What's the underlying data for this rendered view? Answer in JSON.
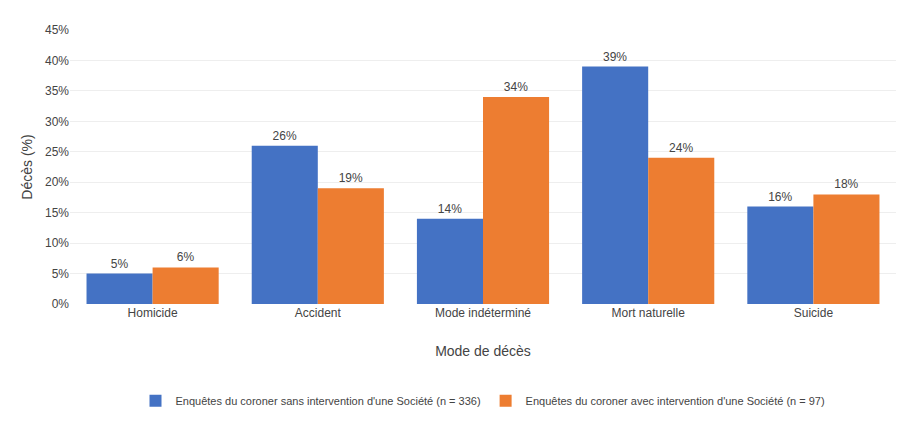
{
  "chart_data": {
    "type": "bar",
    "categories": [
      "Homicide",
      "Accident",
      "Mode indéterminé",
      "Mort naturelle",
      "Suicide"
    ],
    "series": [
      {
        "name": "Enquêtes du coroner sans intervention d'une Société (n = 336)",
        "color": "#4472C4",
        "values": [
          5,
          26,
          14,
          39,
          16
        ],
        "value_labels": [
          "5%",
          "26%",
          "14%",
          "39%",
          "16%"
        ]
      },
      {
        "name": "Enquêtes du coroner avec intervention d'une Société (n = 97)",
        "color": "#ED7D31",
        "values": [
          6,
          19,
          34,
          24,
          18
        ],
        "value_labels": [
          "6%",
          "19%",
          "34%",
          "24%",
          "18%"
        ]
      }
    ],
    "xlabel": "Mode de décès",
    "ylabel": "Décès (%)",
    "ylim": [
      0,
      45
    ],
    "yticks": [
      {
        "value": 0,
        "label": "0%"
      },
      {
        "value": 5,
        "label": "5%"
      },
      {
        "value": 10,
        "label": "10%"
      },
      {
        "value": 15,
        "label": "15%"
      },
      {
        "value": 20,
        "label": "20%"
      },
      {
        "value": 25,
        "label": "25%"
      },
      {
        "value": 30,
        "label": "30%"
      },
      {
        "value": 35,
        "label": "35%"
      },
      {
        "value": 40,
        "label": "40%"
      },
      {
        "value": 45,
        "label": "45%"
      }
    ],
    "grid": true,
    "legend": "bottom",
    "data_labels": true
  }
}
